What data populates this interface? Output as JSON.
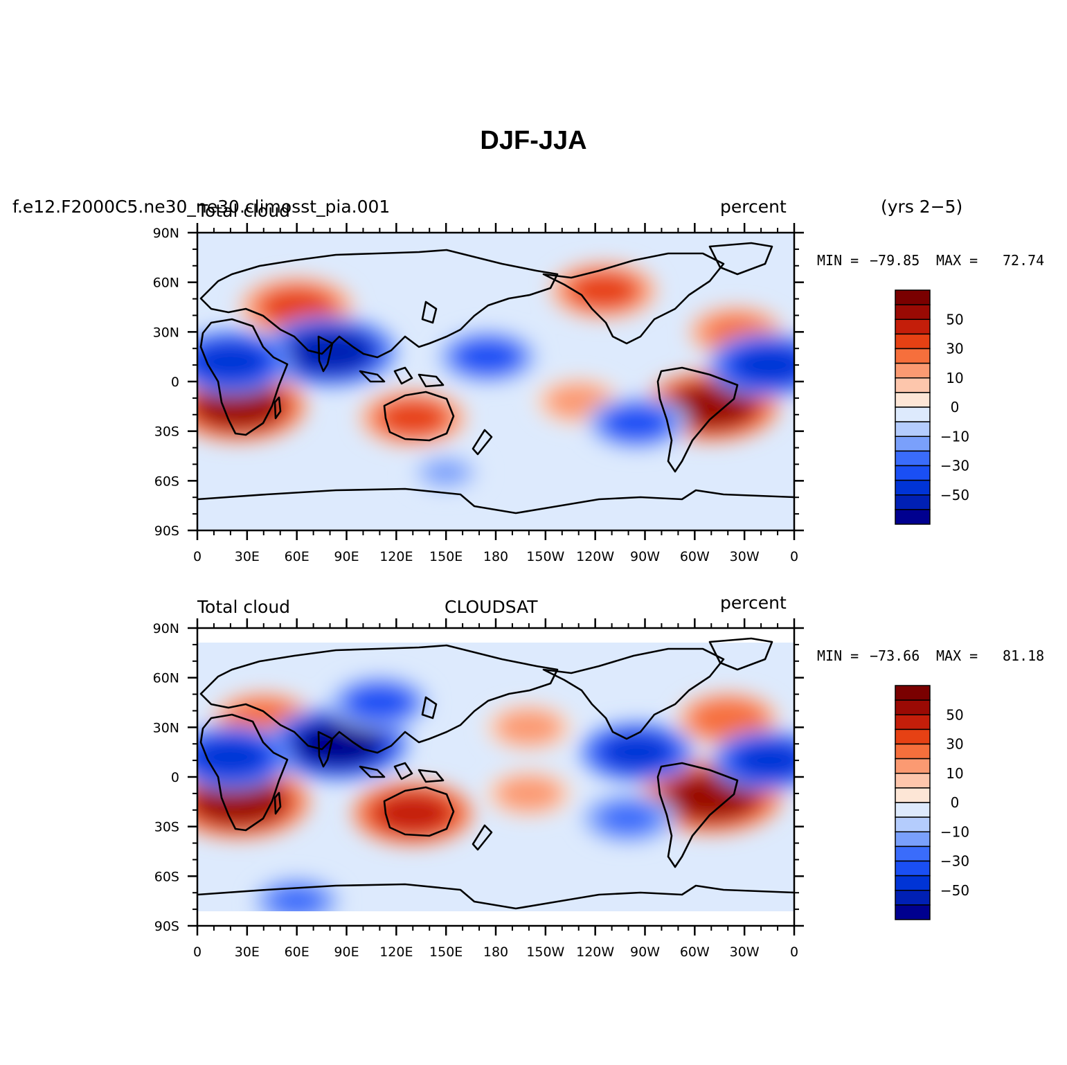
{
  "figure_title": "DJF-JJA",
  "legend_levels": [
    -60,
    -50,
    -40,
    -30,
    -20,
    -10,
    -5,
    0,
    5,
    10,
    20,
    30,
    40,
    50,
    60
  ],
  "legend_colors": [
    "#00008f",
    "#0020b4",
    "#0034d6",
    "#1a4ff4",
    "#3a6cfb",
    "#7aa0fb",
    "#b4ccfd",
    "#ddeafd",
    "#fde6d6",
    "#fdc6ac",
    "#fb9a72",
    "#f66f3c",
    "#e64114",
    "#c41e0a",
    "#9a0a04",
    "#7a0000"
  ],
  "legend_labels": [
    "50",
    "30",
    "10",
    "0",
    "−10",
    "−30",
    "−50"
  ],
  "lat_ticks": [
    "90N",
    "60N",
    "30N",
    "0",
    "30S",
    "60S",
    "90S"
  ],
  "lon_ticks": [
    "0",
    "30E",
    "60E",
    "90E",
    "120E",
    "150E",
    "180",
    "150W",
    "120W",
    "90W",
    "60W",
    "30W",
    "0"
  ],
  "panels": [
    {
      "left": "Total cloud",
      "center": "",
      "right": "percent",
      "case_label": "f.e12.F2000C5.ne30_ne30.climosst_pia.001",
      "years": "(yrs 2−5)",
      "min": "−79.85",
      "max": "72.74",
      "min_label": "MIN =",
      "max_label": "MAX ="
    },
    {
      "left": "Total cloud",
      "center": "CLOUDSAT",
      "right": "percent",
      "min": "−73.66",
      "max": "81.18",
      "min_label": "MIN =",
      "max_label": "MAX ="
    }
  ],
  "chart_data": [
    {
      "type": "map",
      "title": "DJF-JJA",
      "variable": "Total cloud",
      "units": "percent",
      "source": "f.e12.F2000C5.ne30_ne30.climosst_pia.001",
      "period": "(yrs 2−5)",
      "min": -79.85,
      "max": 72.74,
      "lat_range": [
        -90,
        90
      ],
      "lon_range": [
        0,
        360
      ],
      "anomalies": [
        {
          "lon": 60,
          "lat": 45,
          "value": 40
        },
        {
          "lon": 25,
          "lat": -15,
          "value": 55
        },
        {
          "lon": 310,
          "lat": -15,
          "value": 55
        },
        {
          "lon": 130,
          "lat": -22,
          "value": 35
        },
        {
          "lon": 245,
          "lat": 55,
          "value": 35
        },
        {
          "lon": 325,
          "lat": 30,
          "value": 25
        },
        {
          "lon": 230,
          "lat": -12,
          "value": 20
        },
        {
          "lon": 80,
          "lat": 18,
          "value": -55
        },
        {
          "lon": 20,
          "lat": 12,
          "value": -45
        },
        {
          "lon": 345,
          "lat": 10,
          "value": -45
        },
        {
          "lon": 175,
          "lat": 15,
          "value": -30
        },
        {
          "lon": 265,
          "lat": -25,
          "value": -30
        },
        {
          "lon": 150,
          "lat": -55,
          "value": -10
        }
      ]
    },
    {
      "type": "map",
      "title": "DJF-JJA",
      "variable": "Total cloud",
      "source": "CLOUDSAT",
      "units": "percent",
      "min": -73.66,
      "max": 81.18,
      "lat_range": [
        -90,
        90
      ],
      "lon_range": [
        0,
        360
      ],
      "anomalies": [
        {
          "lon": 25,
          "lat": -15,
          "value": 60
        },
        {
          "lon": 310,
          "lat": -12,
          "value": 60
        },
        {
          "lon": 130,
          "lat": -22,
          "value": 45
        },
        {
          "lon": 40,
          "lat": 35,
          "value": 30
        },
        {
          "lon": 200,
          "lat": 30,
          "value": 20
        },
        {
          "lon": 320,
          "lat": 35,
          "value": 30
        },
        {
          "lon": 200,
          "lat": -10,
          "value": 20
        },
        {
          "lon": 85,
          "lat": 20,
          "value": -60
        },
        {
          "lon": 20,
          "lat": 12,
          "value": -45
        },
        {
          "lon": 265,
          "lat": 15,
          "value": -40
        },
        {
          "lon": 345,
          "lat": 10,
          "value": -40
        },
        {
          "lon": 110,
          "lat": 45,
          "value": -30
        },
        {
          "lon": 260,
          "lat": -25,
          "value": -25
        },
        {
          "lon": 60,
          "lat": -75,
          "value": -20
        }
      ]
    }
  ]
}
